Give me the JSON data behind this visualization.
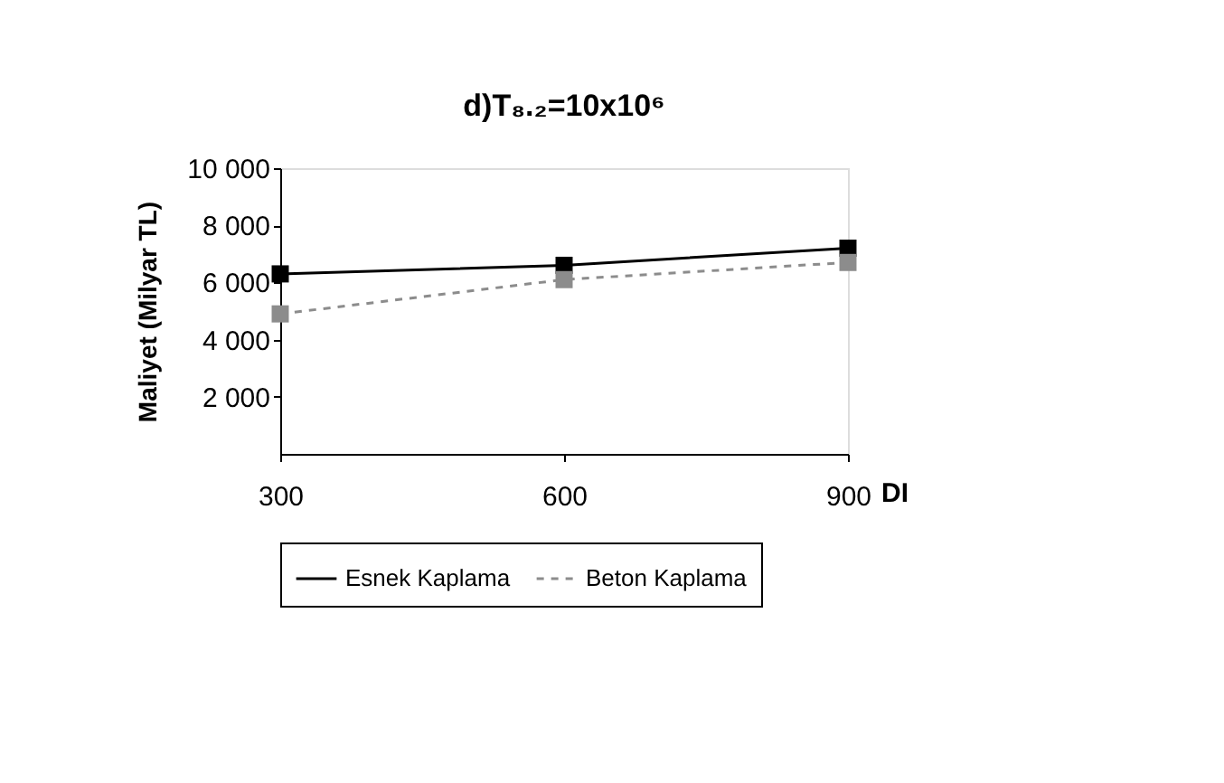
{
  "chart_data": {
    "type": "line",
    "title": "d)T₈.₂=10x10⁶",
    "xlabel": "DI",
    "ylabel": "Maliyet (Milyar TL)",
    "x": [
      300,
      600,
      900
    ],
    "xlim": [
      300,
      900
    ],
    "xticks": [
      300,
      600,
      900
    ],
    "ylim": [
      0,
      10000
    ],
    "yticks": [
      {
        "value": 2000,
        "label": "2 000"
      },
      {
        "value": 4000,
        "label": "4 000"
      },
      {
        "value": 6000,
        "label": "6 000"
      },
      {
        "value": 8000,
        "label": "8 000"
      },
      {
        "value": 10000,
        "label": "10 000"
      }
    ],
    "series": [
      {
        "name": "Esnek Kaplama",
        "color": "#000000",
        "values": [
          6300,
          6600,
          7200
        ],
        "line_style": "solid",
        "marker": "square"
      },
      {
        "name": "Beton Kaplama",
        "color": "#8c8c8c",
        "values": [
          4900,
          6100,
          6700
        ],
        "line_style": "dashed",
        "marker": "square"
      }
    ],
    "grid": false,
    "legend": "bottom"
  }
}
